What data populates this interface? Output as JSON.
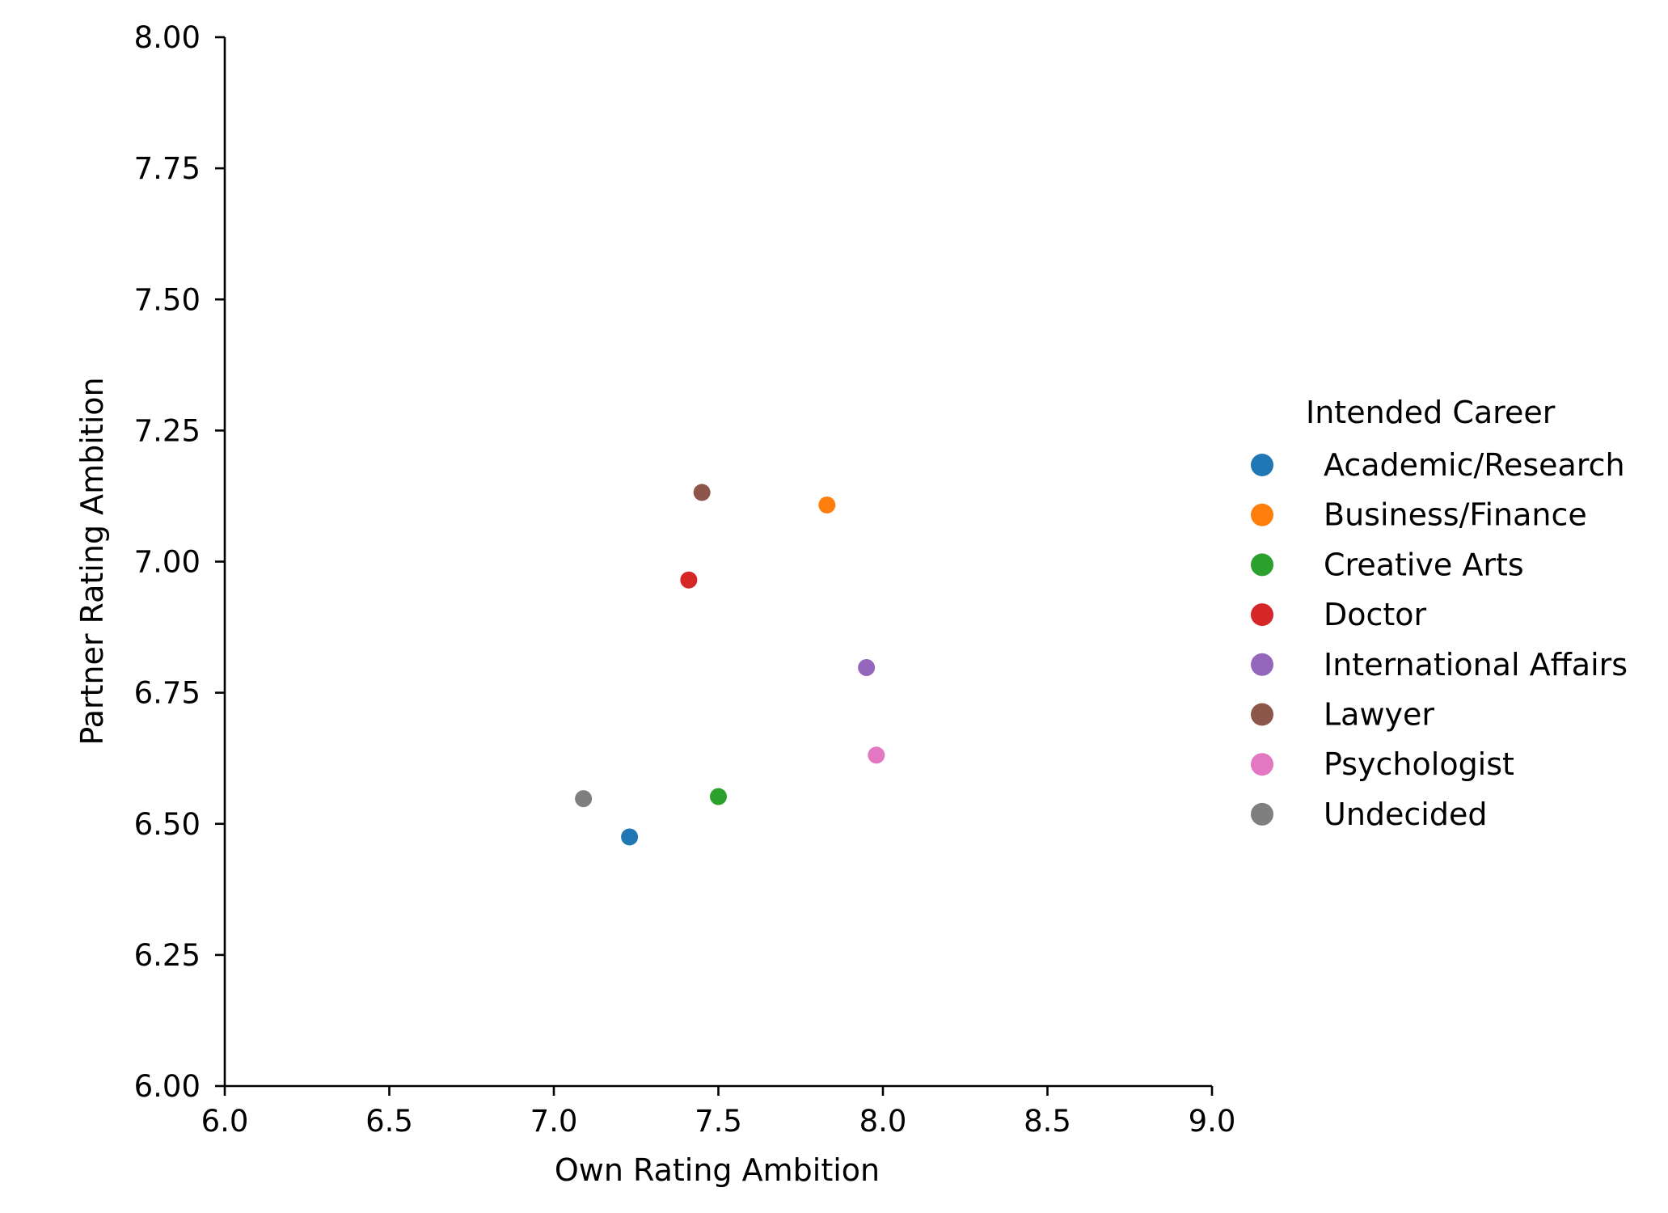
{
  "chart_data": {
    "type": "scatter",
    "xlabel": "Own Rating Ambition",
    "ylabel": "Partner Rating Ambition",
    "xlim": [
      6.0,
      9.0
    ],
    "ylim": [
      6.0,
      8.0
    ],
    "x_ticks": [
      "6.0",
      "6.5",
      "7.0",
      "7.5",
      "8.0",
      "8.5",
      "9.0"
    ],
    "y_ticks": [
      "6.00",
      "6.25",
      "6.50",
      "6.75",
      "7.00",
      "7.25",
      "7.50",
      "7.75",
      "8.00"
    ],
    "grid": false,
    "legend_title": "Intended Career",
    "legend_position": "right",
    "series": [
      {
        "name": "Academic/Research",
        "color": "#1f77b4",
        "x": 7.23,
        "y": 6.475
      },
      {
        "name": "Business/Finance",
        "color": "#ff7f0e",
        "x": 7.83,
        "y": 7.108
      },
      {
        "name": "Creative Arts",
        "color": "#2ca02c",
        "x": 7.5,
        "y": 6.552
      },
      {
        "name": "Doctor",
        "color": "#d62728",
        "x": 7.41,
        "y": 6.965
      },
      {
        "name": "International Affairs",
        "color": "#9467bd",
        "x": 7.95,
        "y": 6.798
      },
      {
        "name": "Lawyer",
        "color": "#8c564b",
        "x": 7.45,
        "y": 7.132
      },
      {
        "name": "Psychologist",
        "color": "#e377c2",
        "x": 7.98,
        "y": 6.631
      },
      {
        "name": "Undecided",
        "color": "#7f7f7f",
        "x": 7.09,
        "y": 6.548
      }
    ]
  }
}
